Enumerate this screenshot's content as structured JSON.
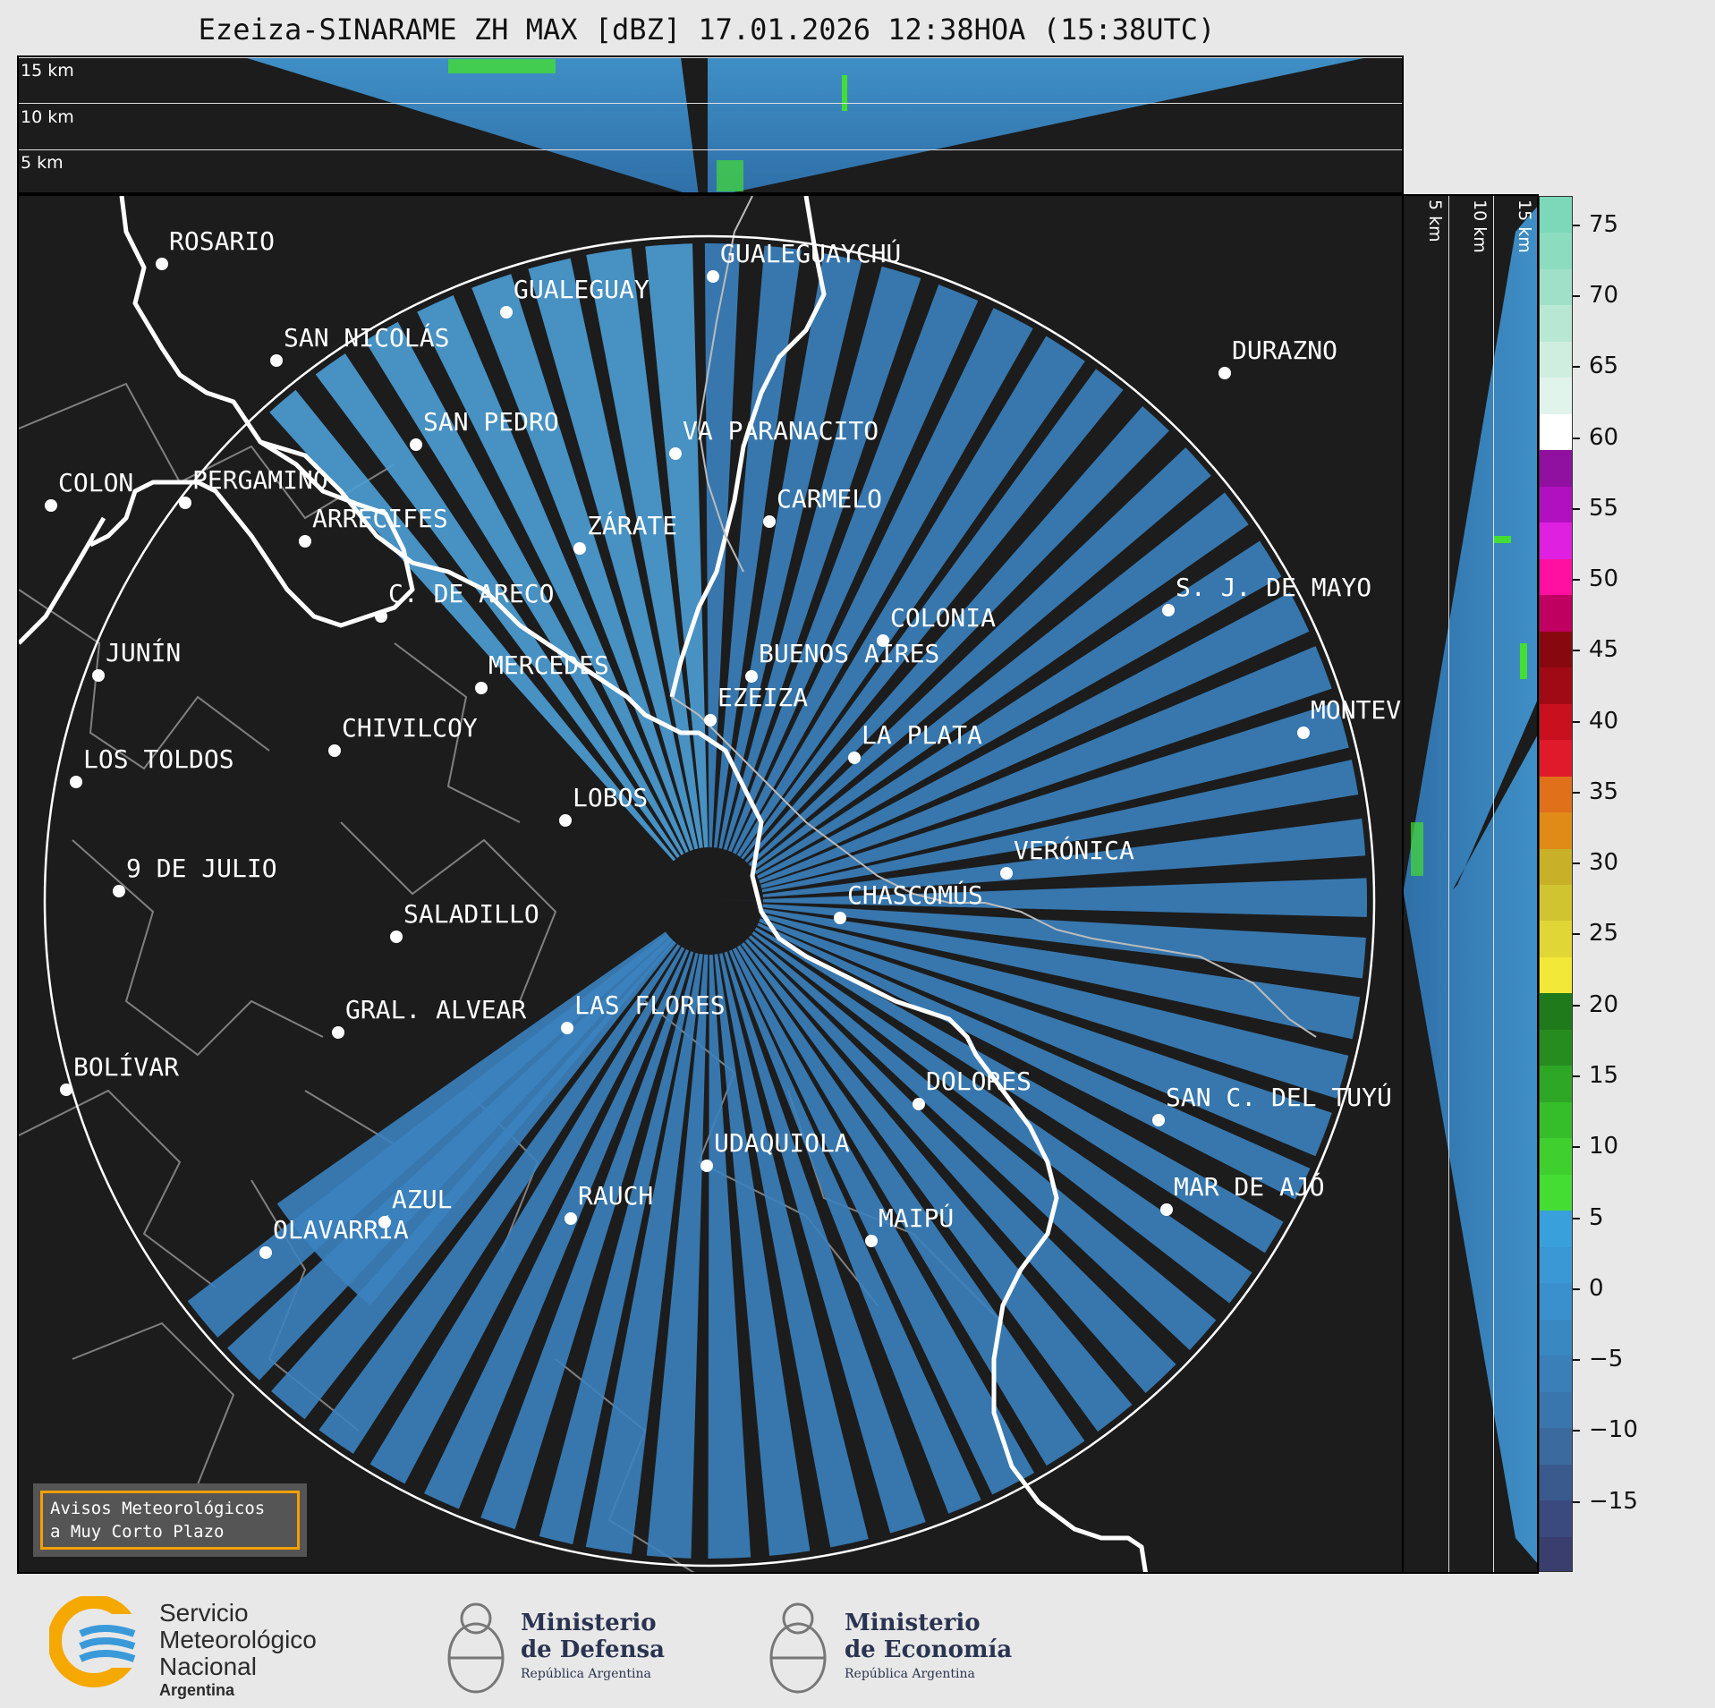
{
  "title": "Ezeiza-SINARAME ZH MAX [dBZ] 17.01.2026 12:38HOA (15:38UTC)",
  "altitude_labels": [
    "15 km",
    "10 km",
    "5 km"
  ],
  "side_altitude_labels": [
    "5 km",
    "10 km",
    "15 km"
  ],
  "cities": [
    {
      "name": "ROSARIO"
    },
    {
      "name": "GUALEGUAYCHÚ"
    },
    {
      "name": "GUALEGUAY"
    },
    {
      "name": "SAN NICOLÁS"
    },
    {
      "name": "DURAZNO"
    },
    {
      "name": "SAN PEDRO"
    },
    {
      "name": "VA PARANACITO"
    },
    {
      "name": "COLON"
    },
    {
      "name": "PERGAMINO"
    },
    {
      "name": "CARMELO"
    },
    {
      "name": "ARRECIFES"
    },
    {
      "name": "ZÁRATE"
    },
    {
      "name": "C. DE ARECO"
    },
    {
      "name": "S. J. DE MAYO"
    },
    {
      "name": "COLONIA"
    },
    {
      "name": "BUENOS AIRES"
    },
    {
      "name": "JUNÍN"
    },
    {
      "name": "MERCEDES"
    },
    {
      "name": "EZEIZA"
    },
    {
      "name": "MONTEV"
    },
    {
      "name": "CHIVILCOY"
    },
    {
      "name": "LA PLATA"
    },
    {
      "name": "LOS TOLDOS"
    },
    {
      "name": "LOBOS"
    },
    {
      "name": "VERÓNICA"
    },
    {
      "name": "9 DE JULIO"
    },
    {
      "name": "CHASCOMÚS"
    },
    {
      "name": "SALADILLO"
    },
    {
      "name": "GRAL. ALVEAR"
    },
    {
      "name": "LAS FLORES"
    },
    {
      "name": "BOLÍVAR"
    },
    {
      "name": "DOLORES"
    },
    {
      "name": "SAN C. DEL TUYÚ"
    },
    {
      "name": "UDAQUIOLA"
    },
    {
      "name": "MAR DE AJÓ"
    },
    {
      "name": "AZUL"
    },
    {
      "name": "RAUCH"
    },
    {
      "name": "OLAVARRÍA"
    },
    {
      "name": "MAIPÚ"
    }
  ],
  "colorbar": {
    "unit": "dBZ",
    "min": -20,
    "max": 77,
    "ticks": [
      "75",
      "70",
      "65",
      "60",
      "55",
      "50",
      "45",
      "40",
      "35",
      "30",
      "25",
      "20",
      "15",
      "10",
      "5",
      "0",
      "−5",
      "−10",
      "−15"
    ]
  },
  "avisos": {
    "line1": "Avisos Meteorológicos",
    "line2": "a Muy Corto Plazo"
  },
  "footer": {
    "smn": {
      "line1": "Servicio",
      "line2": "Meteorológico",
      "line3": "Nacional",
      "line4": "Argentina"
    },
    "defensa": {
      "line1": "Ministerio",
      "line2": "de Defensa",
      "line3": "República Argentina"
    },
    "economia": {
      "line1": "Ministerio",
      "line2": "de Economía",
      "line3": "República Argentina"
    }
  },
  "colors": {
    "background": "#1c1c1c",
    "echo": "#3a7ab5",
    "highlight": "#44dd33",
    "range_ring": "#ffffff",
    "coast": "#ffffff"
  }
}
